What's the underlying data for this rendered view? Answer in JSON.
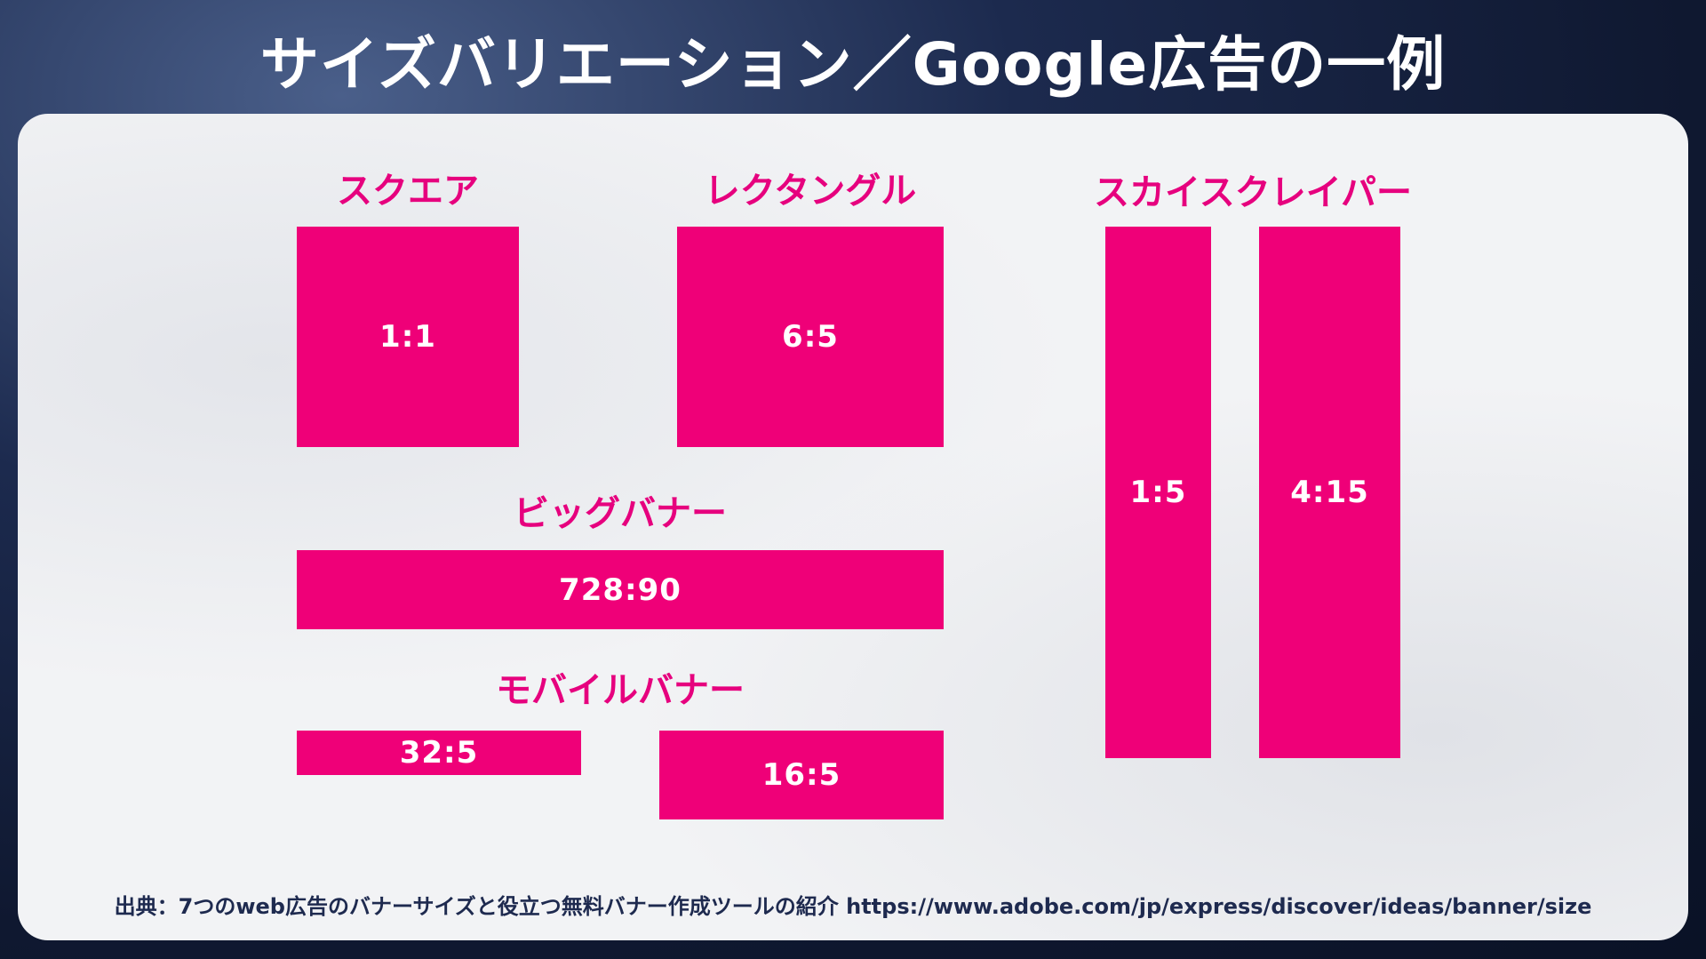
{
  "title": "サイズバリエーション／Google広告の一例",
  "groups": {
    "square": {
      "label": "スクエア",
      "ratio": "1:1"
    },
    "rectangle": {
      "label": "レクタングル",
      "ratio": "6:5"
    },
    "skyscraper": {
      "label": "スカイスクレイパー",
      "ratios": [
        "1:5",
        "4:15"
      ]
    },
    "big_banner": {
      "label": "ビッグバナー",
      "ratio": "728:90"
    },
    "mobile_banner": {
      "label": "モバイルバナー",
      "ratios": [
        "32:5",
        "16:5"
      ]
    }
  },
  "source": "出典：7つのweb広告のバナーサイズと役立つ無料バナー作成ツールの紹介 https://www.adobe.com/jp/express/discover/ideas/banner/size",
  "colors": {
    "accent": "#e6007e",
    "box": "#ef0078",
    "panel": "#f2f3f5",
    "background": "#1c2a4e",
    "source_text": "#1e2a4f"
  }
}
